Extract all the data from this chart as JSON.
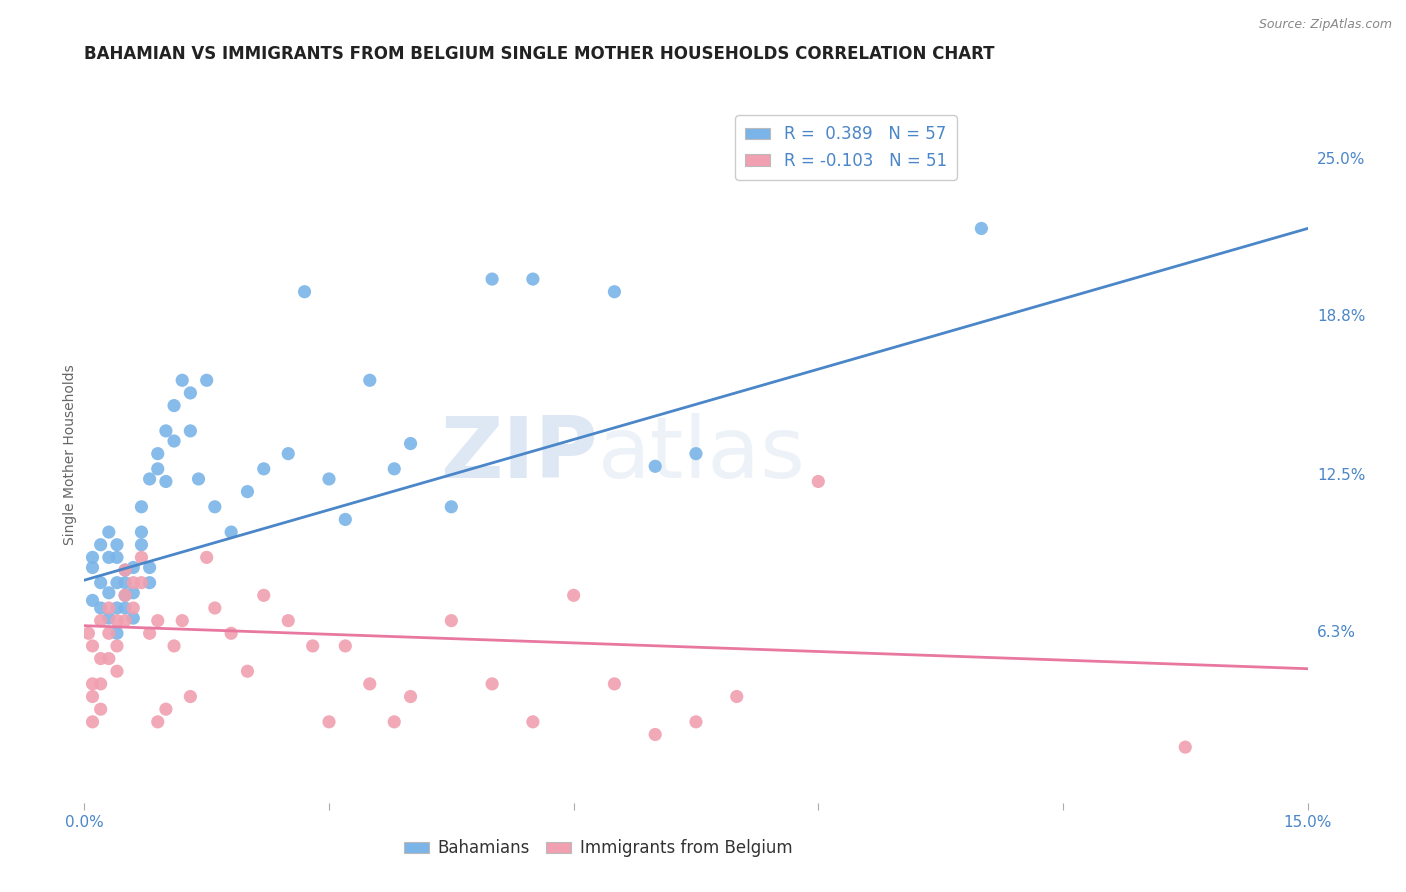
{
  "title": "BAHAMIAN VS IMMIGRANTS FROM BELGIUM SINGLE MOTHER HOUSEHOLDS CORRELATION CHART",
  "source": "Source: ZipAtlas.com",
  "ylabel": "Single Mother Households",
  "xlim": [
    0.0,
    0.15
  ],
  "ylim": [
    -0.005,
    0.27
  ],
  "yticks_right": [
    0.063,
    0.125,
    0.188,
    0.25
  ],
  "yticklabels_right": [
    "6.3%",
    "12.5%",
    "18.8%",
    "25.0%"
  ],
  "blue_color": "#7ab4e8",
  "pink_color": "#f0a0b0",
  "blue_line_color": "#4a86c8",
  "pink_line_color": "#e878a0",
  "legend_R_blue": "R =  0.389",
  "legend_N_blue": "N = 57",
  "legend_R_pink": "R = -0.103",
  "legend_N_pink": "N = 51",
  "watermark_zip": "ZIP",
  "watermark_atlas": "atlas",
  "blue_scatter_x": [
    0.001,
    0.001,
    0.001,
    0.002,
    0.002,
    0.002,
    0.003,
    0.003,
    0.003,
    0.003,
    0.004,
    0.004,
    0.004,
    0.004,
    0.004,
    0.005,
    0.005,
    0.005,
    0.005,
    0.006,
    0.006,
    0.006,
    0.007,
    0.007,
    0.007,
    0.008,
    0.008,
    0.008,
    0.009,
    0.009,
    0.01,
    0.01,
    0.011,
    0.011,
    0.012,
    0.013,
    0.013,
    0.014,
    0.015,
    0.016,
    0.018,
    0.02,
    0.022,
    0.025,
    0.027,
    0.03,
    0.032,
    0.035,
    0.038,
    0.04,
    0.045,
    0.05,
    0.055,
    0.065,
    0.07,
    0.075,
    0.11
  ],
  "blue_scatter_y": [
    0.088,
    0.092,
    0.075,
    0.072,
    0.082,
    0.097,
    0.068,
    0.078,
    0.092,
    0.102,
    0.062,
    0.072,
    0.082,
    0.092,
    0.097,
    0.072,
    0.077,
    0.082,
    0.087,
    0.068,
    0.078,
    0.088,
    0.097,
    0.102,
    0.112,
    0.082,
    0.088,
    0.123,
    0.127,
    0.133,
    0.122,
    0.142,
    0.138,
    0.152,
    0.162,
    0.142,
    0.157,
    0.123,
    0.162,
    0.112,
    0.102,
    0.118,
    0.127,
    0.133,
    0.197,
    0.123,
    0.107,
    0.162,
    0.127,
    0.137,
    0.112,
    0.202,
    0.202,
    0.197,
    0.128,
    0.133,
    0.222
  ],
  "pink_scatter_x": [
    0.0005,
    0.001,
    0.001,
    0.001,
    0.001,
    0.002,
    0.002,
    0.002,
    0.002,
    0.003,
    0.003,
    0.003,
    0.004,
    0.004,
    0.004,
    0.005,
    0.005,
    0.005,
    0.006,
    0.006,
    0.007,
    0.007,
    0.008,
    0.009,
    0.009,
    0.01,
    0.011,
    0.012,
    0.013,
    0.015,
    0.016,
    0.018,
    0.02,
    0.022,
    0.025,
    0.028,
    0.03,
    0.032,
    0.035,
    0.038,
    0.04,
    0.045,
    0.05,
    0.055,
    0.06,
    0.065,
    0.07,
    0.075,
    0.08,
    0.09,
    0.135
  ],
  "pink_scatter_y": [
    0.062,
    0.057,
    0.042,
    0.037,
    0.027,
    0.067,
    0.052,
    0.042,
    0.032,
    0.072,
    0.062,
    0.052,
    0.067,
    0.057,
    0.047,
    0.087,
    0.077,
    0.067,
    0.082,
    0.072,
    0.082,
    0.092,
    0.062,
    0.067,
    0.027,
    0.032,
    0.057,
    0.067,
    0.037,
    0.092,
    0.072,
    0.062,
    0.047,
    0.077,
    0.067,
    0.057,
    0.027,
    0.057,
    0.042,
    0.027,
    0.037,
    0.067,
    0.042,
    0.027,
    0.077,
    0.042,
    0.022,
    0.027,
    0.037,
    0.122,
    0.017
  ],
  "blue_trend_x": [
    0.0,
    0.15
  ],
  "blue_trend_y": [
    0.083,
    0.222
  ],
  "pink_trend_x": [
    0.0,
    0.15
  ],
  "pink_trend_y": [
    0.065,
    0.048
  ],
  "grid_color": "#cccccc",
  "background_color": "#ffffff",
  "title_fontsize": 12,
  "axis_label_fontsize": 10,
  "tick_fontsize": 11,
  "legend_fontsize": 12
}
